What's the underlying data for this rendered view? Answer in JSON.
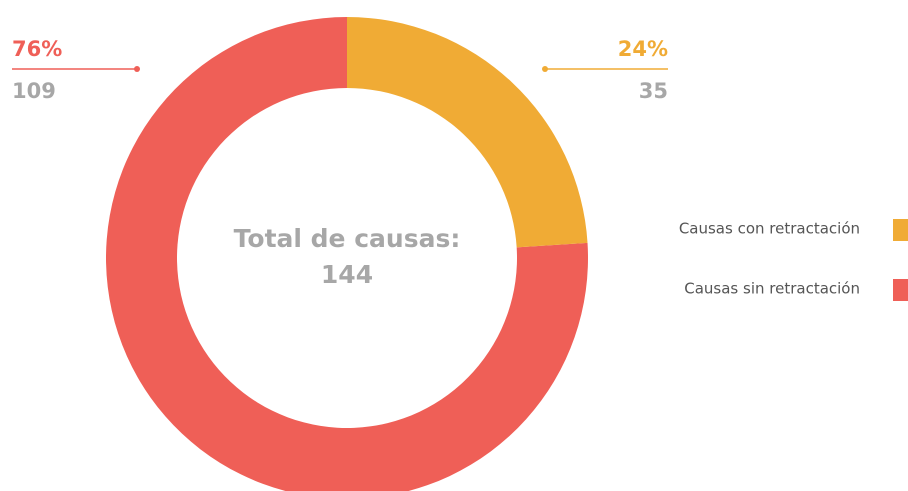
{
  "chart_data": {
    "type": "donut",
    "center_title": "Total de causas:",
    "total": 144,
    "categories": [
      "Causas con retractación",
      "Causas sin retractación"
    ],
    "values": [
      24,
      76
    ],
    "value_labels": [
      "24%",
      "76%"
    ],
    "counts": [
      35,
      109
    ],
    "colors": [
      "#f0ab35",
      "#ef5f57"
    ]
  }
}
